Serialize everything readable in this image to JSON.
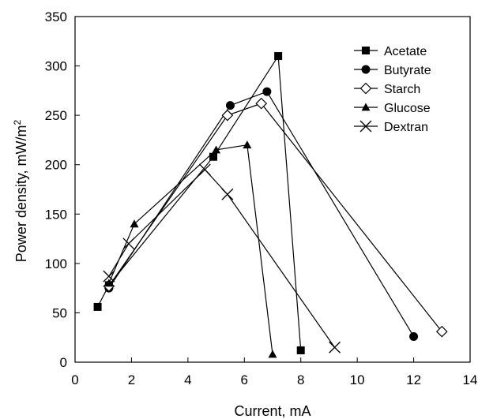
{
  "chart_data": {
    "type": "scatter",
    "title": "",
    "xlabel": "Current, mA",
    "ylabel": "Power density, mW/m",
    "ylabel_sup": "2",
    "xlim": [
      0,
      14
    ],
    "ylim": [
      0,
      350
    ],
    "xticks": [
      0,
      2,
      4,
      6,
      8,
      10,
      12,
      14
    ],
    "yticks": [
      0,
      50,
      100,
      150,
      200,
      250,
      300,
      350
    ],
    "grid": false,
    "legend_position": "top-right",
    "series": [
      {
        "name": "Acetate",
        "marker": "square",
        "x": [
          0.8,
          1.2,
          4.9,
          7.2,
          8.0
        ],
        "y": [
          56,
          78,
          208,
          310,
          12
        ]
      },
      {
        "name": "Butyrate",
        "marker": "circle",
        "x": [
          1.2,
          5.5,
          6.8,
          12.0
        ],
        "y": [
          75,
          260,
          274,
          26
        ]
      },
      {
        "name": "Starch",
        "marker": "diamond",
        "x": [
          1.2,
          5.4,
          6.6,
          13.0
        ],
        "y": [
          77,
          250,
          262,
          31
        ]
      },
      {
        "name": "Glucose",
        "marker": "triangle",
        "x": [
          1.2,
          2.1,
          5.0,
          6.1,
          7.0
        ],
        "y": [
          80,
          140,
          215,
          220,
          8
        ]
      },
      {
        "name": "Dextran",
        "marker": "x",
        "x": [
          1.2,
          1.9,
          4.6,
          5.4,
          9.2
        ],
        "y": [
          87,
          120,
          195,
          170,
          15
        ]
      }
    ]
  }
}
